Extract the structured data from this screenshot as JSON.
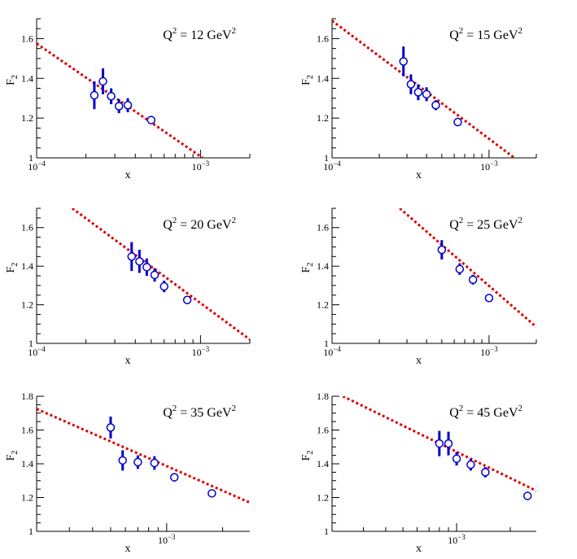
{
  "colors": {
    "data": "#0000cc",
    "fit": "#dd0000"
  },
  "chart_data": [
    {
      "type": "scatter",
      "log_x": true,
      "label_prefix": "Q",
      "label_sup": "2",
      "label_value": " = 12 GeV",
      "label_unit_sup": "2",
      "xlabel": "x",
      "ylabel": "F",
      "ylabel_sub": "2",
      "xlim": [
        0.0001,
        0.002
      ],
      "ylim": [
        1.0,
        1.7
      ],
      "yticks": [
        1,
        1.2,
        1.4,
        1.6
      ],
      "ytick_labels": [
        "1",
        "1.2",
        "1.4",
        "1.6"
      ],
      "xticks": [
        0.0001,
        0.001
      ],
      "xtick_bases": [
        "10",
        "10"
      ],
      "xtick_exps": [
        "−4",
        "−3"
      ],
      "series": [
        {
          "type": "points",
          "x": [
            0.000225,
            0.000254,
            0.000285,
            0.000318,
            0.00036,
            0.0005
          ],
          "y": [
            1.315,
            1.385,
            1.31,
            1.26,
            1.265,
            1.19
          ],
          "err": [
            0.07,
            0.065,
            0.04,
            0.035,
            0.035,
            0.02
          ]
        },
        {
          "type": "line",
          "x": [
            0.0001,
            0.00103
          ],
          "y": [
            1.575,
            1.0
          ]
        }
      ]
    },
    {
      "type": "scatter",
      "log_x": true,
      "label_prefix": "Q",
      "label_sup": "2",
      "label_value": " = 15 GeV",
      "label_unit_sup": "2",
      "xlabel": "x",
      "ylabel": "F",
      "ylabel_sub": "2",
      "xlim": [
        0.0001,
        0.002
      ],
      "ylim": [
        1.0,
        1.7
      ],
      "yticks": [
        1,
        1.2,
        1.4,
        1.6
      ],
      "ytick_labels": [
        "1",
        "1.2",
        "1.4",
        "1.6"
      ],
      "xticks": [
        0.0001,
        0.001
      ],
      "xtick_bases": [
        "10",
        "10"
      ],
      "xtick_exps": [
        "−4",
        "−3"
      ],
      "series": [
        {
          "type": "points",
          "x": [
            0.000285,
            0.000318,
            0.000354,
            0.0004,
            0.000458,
            0.000632
          ],
          "y": [
            1.485,
            1.37,
            1.33,
            1.32,
            1.265,
            1.18
          ],
          "err": [
            0.075,
            0.05,
            0.04,
            0.035,
            0.025,
            0.02
          ]
        },
        {
          "type": "line",
          "x": [
            0.0001,
            0.00145
          ],
          "y": [
            1.69,
            1.0
          ]
        }
      ]
    },
    {
      "type": "scatter",
      "log_x": true,
      "label_prefix": "Q",
      "label_sup": "2",
      "label_value": " = 20 GeV",
      "label_unit_sup": "2",
      "xlabel": "x",
      "ylabel": "F",
      "ylabel_sub": "2",
      "xlim": [
        0.0001,
        0.002
      ],
      "ylim": [
        1.0,
        1.7
      ],
      "yticks": [
        1,
        1.2,
        1.4,
        1.6
      ],
      "ytick_labels": [
        "1",
        "1.2",
        "1.4",
        "1.6"
      ],
      "xticks": [
        0.0001,
        0.001
      ],
      "xtick_bases": [
        "10",
        "10"
      ],
      "xtick_exps": [
        "−4",
        "−3"
      ],
      "series": [
        {
          "type": "points",
          "x": [
            0.00038,
            0.000424,
            0.00047,
            0.000525,
            0.0006,
            0.00083
          ],
          "y": [
            1.45,
            1.425,
            1.395,
            1.355,
            1.295,
            1.225
          ],
          "err": [
            0.075,
            0.06,
            0.045,
            0.035,
            0.03,
            0.02
          ]
        },
        {
          "type": "line",
          "x": [
            0.000165,
            0.002
          ],
          "y": [
            1.7,
            1.02
          ]
        }
      ]
    },
    {
      "type": "scatter",
      "log_x": true,
      "label_prefix": "Q",
      "label_sup": "2",
      "label_value": " = 25 GeV",
      "label_unit_sup": "2",
      "xlabel": "x",
      "ylabel": "F",
      "ylabel_sub": "2",
      "xlim": [
        0.0001,
        0.002
      ],
      "ylim": [
        1.0,
        1.7
      ],
      "yticks": [
        1,
        1.2,
        1.4,
        1.6
      ],
      "ytick_labels": [
        "1",
        "1.2",
        "1.4",
        "1.6"
      ],
      "xticks": [
        0.0001,
        0.001
      ],
      "xtick_bases": [
        "10",
        "10"
      ],
      "xtick_exps": [
        "−4",
        "−3"
      ],
      "series": [
        {
          "type": "points",
          "x": [
            0.0005,
            0.00065,
            0.00079,
            0.001
          ],
          "y": [
            1.485,
            1.385,
            1.33,
            1.235
          ],
          "err": [
            0.05,
            0.03,
            0.025,
            0.02
          ]
        },
        {
          "type": "line",
          "x": [
            0.00027,
            0.002
          ],
          "y": [
            1.7,
            1.085
          ]
        }
      ]
    },
    {
      "type": "scatter",
      "log_x": true,
      "label_prefix": "Q",
      "label_sup": "2",
      "label_value": " = 35 GeV",
      "label_unit_sup": "2",
      "xlabel": "x",
      "ylabel": "F",
      "ylabel_sub": "2",
      "xlim": [
        0.0002,
        0.0028
      ],
      "ylim": [
        1.0,
        1.8
      ],
      "yticks": [
        1,
        1.2,
        1.4,
        1.6,
        1.8
      ],
      "ytick_labels": [
        "1",
        "1.2",
        "1.4",
        "1.6",
        "1.8"
      ],
      "xticks": [
        0.001
      ],
      "xtick_bases": [
        "10"
      ],
      "xtick_exps": [
        "−3"
      ],
      "series": [
        {
          "type": "points",
          "x": [
            0.0005,
            0.00058,
            0.0007,
            0.00086,
            0.0011,
            0.00175
          ],
          "y": [
            1.615,
            1.42,
            1.41,
            1.405,
            1.32,
            1.225
          ],
          "err": [
            0.065,
            0.06,
            0.04,
            0.04,
            0.025,
            0.02
          ]
        },
        {
          "type": "line",
          "x": [
            0.0002,
            0.0028
          ],
          "y": [
            1.725,
            1.17
          ]
        }
      ]
    },
    {
      "type": "scatter",
      "log_x": true,
      "label_prefix": "Q",
      "label_sup": "2",
      "label_value": " = 45 GeV",
      "label_unit_sup": "2",
      "xlabel": "x",
      "ylabel": "F",
      "ylabel_sub": "2",
      "xlim": [
        0.0002,
        0.0028
      ],
      "ylim": [
        1.0,
        1.8
      ],
      "yticks": [
        1,
        1.2,
        1.4,
        1.6,
        1.8
      ],
      "ytick_labels": [
        "1",
        "1.2",
        "1.4",
        "1.6",
        "1.8"
      ],
      "xticks": [
        0.001
      ],
      "xtick_bases": [
        "10"
      ],
      "xtick_exps": [
        "−3"
      ],
      "series": [
        {
          "type": "points",
          "x": [
            0.0008,
            0.0009,
            0.001,
            0.0012,
            0.00145,
            0.0025
          ],
          "y": [
            1.52,
            1.52,
            1.43,
            1.395,
            1.35,
            1.21
          ],
          "err": [
            0.075,
            0.07,
            0.04,
            0.035,
            0.03,
            0.02
          ]
        },
        {
          "type": "line",
          "x": [
            0.00023,
            0.0028
          ],
          "y": [
            1.8,
            1.24
          ]
        }
      ]
    }
  ]
}
